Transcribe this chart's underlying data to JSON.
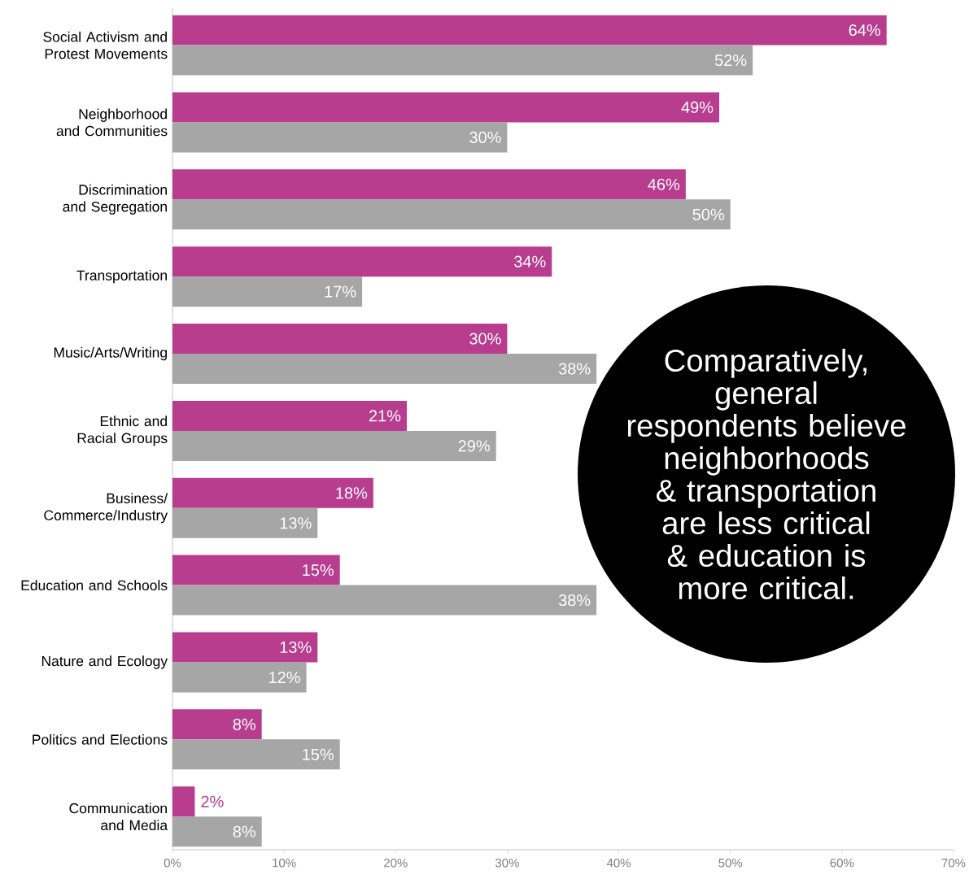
{
  "chart_data": {
    "type": "bar",
    "orientation": "horizontal",
    "categories": [
      "Social Activism and Protest Movements",
      "Neighborhood and Communities",
      "Discrimination and Segregation",
      "Transportation",
      "Music/Arts/Writing",
      "Ethnic and Racial Groups",
      "Business/ Commerce/Industry",
      "Education and Schools",
      "Nature and Ecology",
      "Politics and Elections",
      "Communication and Media"
    ],
    "series": [
      {
        "color": "#b83d8f",
        "values": [
          64,
          49,
          46,
          34,
          30,
          21,
          18,
          15,
          13,
          8,
          2
        ],
        "value_labels": [
          "64%",
          "49%",
          "46%",
          "34%",
          "30%",
          "21%",
          "18%",
          "15%",
          "13%",
          "8%",
          "2%"
        ]
      },
      {
        "color": "#a6a6a6",
        "values": [
          52,
          30,
          50,
          17,
          38,
          29,
          13,
          38,
          12,
          15,
          8
        ],
        "value_labels": [
          "52%",
          "30%",
          "50%",
          "17%",
          "38%",
          "29%",
          "13%",
          "38%",
          "12%",
          "15%",
          "8%"
        ]
      }
    ],
    "xlim": [
      0,
      70
    ],
    "xticks": [
      {
        "value": 0,
        "label": "0%"
      },
      {
        "value": 10,
        "label": "10%"
      },
      {
        "value": 20,
        "label": "20%"
      },
      {
        "value": 30,
        "label": "30%"
      },
      {
        "value": 40,
        "label": "40%"
      },
      {
        "value": 50,
        "label": "50%"
      },
      {
        "value": 60,
        "label": "60%"
      },
      {
        "value": 70,
        "label": "70%"
      }
    ],
    "annotations": [
      "Comparatively, general respondents believe neighborhoods & transportation are less critical & education is more critical."
    ]
  }
}
